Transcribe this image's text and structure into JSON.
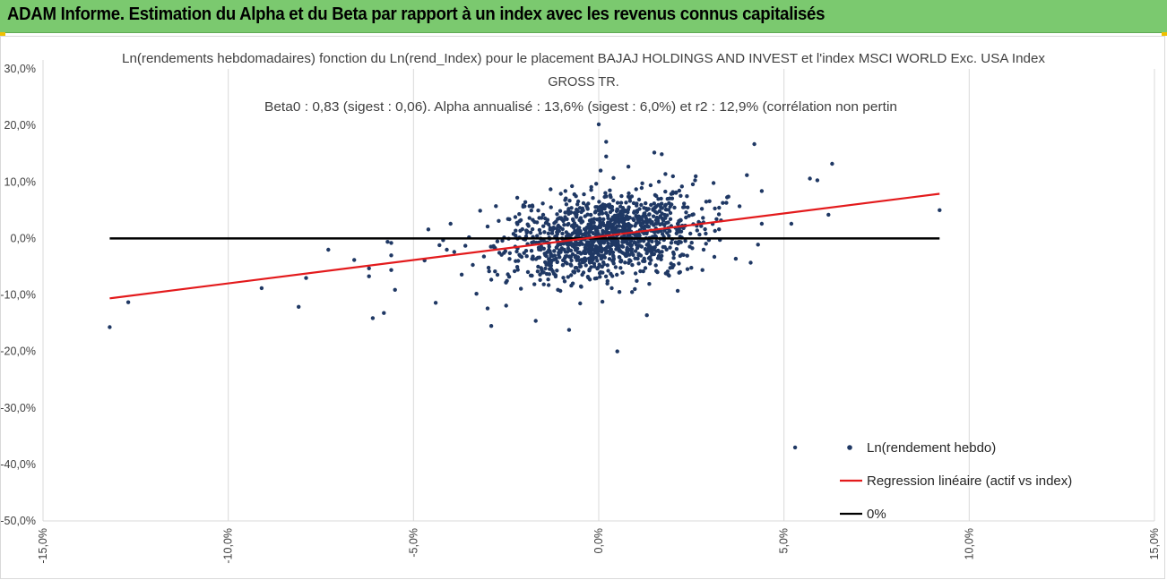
{
  "header": {
    "title": "ADAM Informe. Estimation du Alpha et du Beta par rapport à un index avec les revenus connus capitalisés"
  },
  "chart_data": {
    "type": "scatter",
    "title_lines": [
      "Ln(rendements hebdomadaires) fonction du Ln(rend_Index) pour le placement BAJAJ HOLDINGS AND INVEST et l'index MSCI WORLD Exc. USA Index",
      "GROSS TR.",
      "Beta0 : 0,83 (sigest : 0,06). Alpha annualisé : 13,6% (sigest : 6,0%) et r2 : 12,9% (corrélation non pertin"
    ],
    "x_axis": {
      "min": -15,
      "max": 15,
      "step": 5,
      "tick_labels": [
        "-15,0%",
        "-10,0%",
        "-5,0%",
        "0,0%",
        "5,0%",
        "10,0%",
        "15,0%"
      ]
    },
    "y_axis": {
      "min": -50,
      "max": 30,
      "step": 10,
      "tick_labels": [
        "-50,0%",
        "-40,0%",
        "-30,0%",
        "-20,0%",
        "-10,0%",
        "0,0%",
        "10,0%",
        "20,0%",
        "30,0%"
      ]
    },
    "grid": "vertical",
    "legend": {
      "position": "bottom-right",
      "entries": [
        "Ln(rendement hebdo)",
        "Regression linéaire (actif vs index)",
        "0%"
      ]
    },
    "colors": {
      "points": "#1f3864",
      "regression": "#e31a1c",
      "zero": "#000000",
      "grid": "#d9d9d9",
      "header": "#7bc96f"
    },
    "regression": {
      "x": [
        -13.2,
        9.2
      ],
      "y": [
        -10.6,
        7.9
      ]
    },
    "zero_line": {
      "x": [
        -13.2,
        9.2
      ],
      "y": [
        0,
        0
      ]
    },
    "series": [
      {
        "name": "Ln(rendement hebdo)",
        "points": [
          [
            -13.2,
            -15.7
          ],
          [
            -12.7,
            -11.3
          ],
          [
            -9.1,
            -8.8
          ],
          [
            -8.1,
            -12.1
          ],
          [
            -7.9,
            -7
          ],
          [
            -7.3,
            -2
          ],
          [
            -6.6,
            -3.8
          ],
          [
            -6.2,
            -5.3
          ],
          [
            -6.2,
            -6.7
          ],
          [
            -6.1,
            -14.1
          ],
          [
            -5.8,
            -13.2
          ],
          [
            -5.7,
            -0.6
          ],
          [
            -5.6,
            -3
          ],
          [
            -5.6,
            -5.6
          ],
          [
            -5.5,
            -9.1
          ],
          [
            -5.6,
            -0.8
          ],
          [
            -4.7,
            -3.9
          ],
          [
            -4.6,
            1.6
          ],
          [
            -4.4,
            -11.4
          ],
          [
            -4.3,
            -1.2
          ],
          [
            -4.2,
            -0.3
          ],
          [
            -4.1,
            -2
          ],
          [
            -4,
            2.6
          ],
          [
            -3.9,
            -2.4
          ],
          [
            -3.7,
            -6.4
          ],
          [
            -3.6,
            -1.3
          ],
          [
            -3.5,
            0.2
          ],
          [
            -3.4,
            -4.7
          ],
          [
            -3.3,
            -9.8
          ],
          [
            -3.2,
            4.9
          ],
          [
            -3.1,
            -3.2
          ],
          [
            -3,
            2.1
          ],
          [
            -3,
            -12.4
          ],
          [
            -2.9,
            -7.3
          ],
          [
            -2.9,
            -15.5
          ],
          [
            -2.8,
            -1.7
          ],
          [
            -2.7,
            3.1
          ],
          [
            -2.6,
            -0.4
          ],
          [
            -2.5,
            -11.9
          ],
          [
            -2.4,
            -2.6
          ],
          [
            -2.3,
            0.8
          ],
          [
            -2.2,
            7.2
          ],
          [
            -2.1,
            -8.9
          ],
          [
            -2,
            5.7
          ],
          [
            -1.8,
            -3.6
          ],
          [
            -1.7,
            -14.6
          ],
          [
            -1.6,
            1.5
          ],
          [
            -1.5,
            4.2
          ],
          [
            -1.4,
            -6.3
          ],
          [
            -1.3,
            8.7
          ],
          [
            -1.2,
            2.7
          ],
          [
            -1.1,
            -9.1
          ],
          [
            -0.9,
            8.4
          ],
          [
            -0.8,
            -16.2
          ],
          [
            -0.7,
            3.4
          ],
          [
            -0.6,
            -5.2
          ],
          [
            -0.5,
            -11.5
          ],
          [
            -0.4,
            7.8
          ],
          [
            -0.3,
            -0.9
          ],
          [
            -0.2,
            9.1
          ],
          [
            -0.1,
            -7.1
          ],
          [
            0,
            20.2
          ],
          [
            0.05,
            12
          ],
          [
            0.1,
            -11.2
          ],
          [
            0.2,
            14.5
          ],
          [
            0.2,
            17.1
          ],
          [
            0.3,
            8.5
          ],
          [
            0.35,
            -8.8
          ],
          [
            0.4,
            10.7
          ],
          [
            0.5,
            -20
          ],
          [
            0.6,
            -4.1
          ],
          [
            0.8,
            7.4
          ],
          [
            0.8,
            12.7
          ],
          [
            0.9,
            -9.5
          ],
          [
            1.1,
            5.2
          ],
          [
            1.3,
            -13.6
          ],
          [
            1.4,
            9.4
          ],
          [
            1.5,
            15.2
          ],
          [
            1.6,
            -3.5
          ],
          [
            1.7,
            14.9
          ],
          [
            1.8,
            11.4
          ],
          [
            1.9,
            -6.6
          ],
          [
            2,
            8.2
          ],
          [
            2.2,
            -3.1
          ],
          [
            2.4,
            5.5
          ],
          [
            2.5,
            -5.2
          ],
          [
            2.6,
            10.3
          ],
          [
            2.8,
            -5.6
          ],
          [
            2.9,
            6.5
          ],
          [
            3.1,
            9.8
          ],
          [
            3.3,
            3.2
          ],
          [
            3.5,
            7.4
          ],
          [
            3.7,
            -3.6
          ],
          [
            3.8,
            5.7
          ],
          [
            4,
            11.2
          ],
          [
            4.1,
            -4.3
          ],
          [
            4.2,
            16.7
          ],
          [
            4.3,
            -1.1
          ],
          [
            4.4,
            8.4
          ],
          [
            4.4,
            2.6
          ],
          [
            5.2,
            2.6
          ],
          [
            5.7,
            10.6
          ],
          [
            5.9,
            10.3
          ],
          [
            6.2,
            4.2
          ],
          [
            6.3,
            13.2
          ],
          [
            9.2,
            5
          ],
          [
            5.3,
            -37
          ]
        ],
        "cloud": {
          "n": 1180,
          "x_mean": 0.2,
          "x_sd": 1.25,
          "slope": 0.83,
          "intercept": 0.25,
          "residual_sd": 3.6
        }
      }
    ]
  }
}
